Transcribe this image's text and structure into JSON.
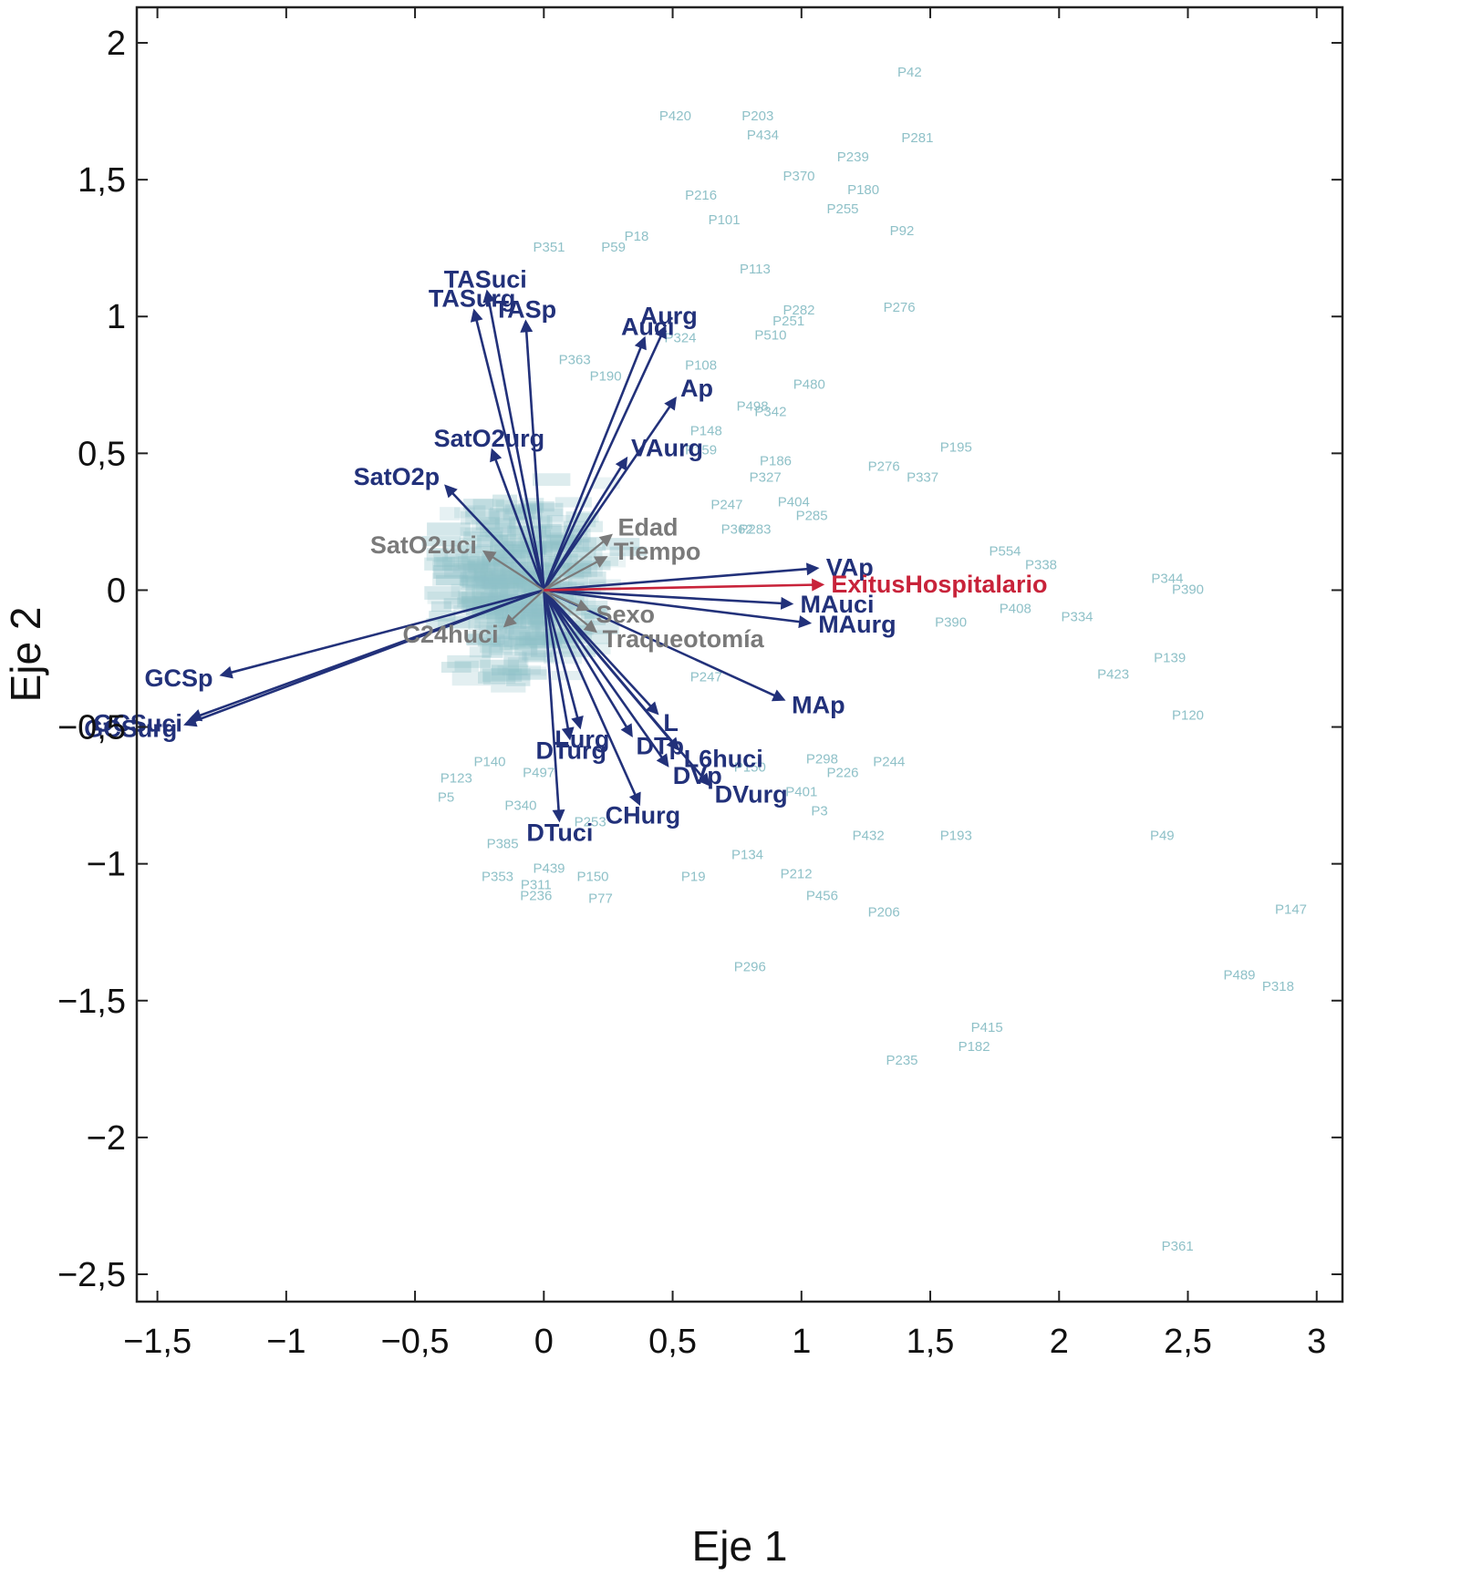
{
  "chart_data": {
    "type": "scatter",
    "subtype": "biplot",
    "xlabel": "Eje 1",
    "ylabel": "Eje 2",
    "xlim": [
      -1.58,
      3.1
    ],
    "ylim": [
      -2.6,
      2.13
    ],
    "xticks": [
      -1.5,
      -1,
      -0.5,
      0,
      0.5,
      1,
      1.5,
      2,
      2.5,
      3
    ],
    "xtick_labels": [
      "−1,5",
      "−1",
      "−0,5",
      "0",
      "0,5",
      "1",
      "1,5",
      "2",
      "2,5",
      "3"
    ],
    "yticks": [
      2,
      1.5,
      1,
      0.5,
      0,
      -0.5,
      -1,
      -1.5,
      -2,
      -2.5
    ],
    "ytick_labels": [
      "2",
      "1,5",
      "1",
      "0,5",
      "0",
      "−0,5",
      "−1",
      "−1,5",
      "−2",
      "−2,5"
    ],
    "grid": false,
    "colors": {
      "observations": "#8fc1c8",
      "variables": "#22317a",
      "supplementary": "#7a7a7a",
      "target": "#c8233a",
      "axes": "#222222"
    },
    "vectors": [
      {
        "name": "TASuci",
        "x": -0.22,
        "y": 1.09,
        "group": "variables"
      },
      {
        "name": "TASurg",
        "x": -0.27,
        "y": 1.02,
        "group": "variables"
      },
      {
        "name": "TASp",
        "x": -0.07,
        "y": 0.98,
        "group": "variables"
      },
      {
        "name": "Auci",
        "x": 0.39,
        "y": 0.92,
        "group": "variables"
      },
      {
        "name": "Aurg",
        "x": 0.47,
        "y": 0.96,
        "group": "variables"
      },
      {
        "name": "Ap",
        "x": 0.51,
        "y": 0.7,
        "group": "variables"
      },
      {
        "name": "SatO2urg",
        "x": -0.2,
        "y": 0.51,
        "group": "variables"
      },
      {
        "name": "SatO2p",
        "x": -0.38,
        "y": 0.38,
        "group": "variables"
      },
      {
        "name": "VAurg",
        "x": 0.32,
        "y": 0.48,
        "group": "variables"
      },
      {
        "name": "VAp",
        "x": 1.06,
        "y": 0.08,
        "group": "variables"
      },
      {
        "name": "MAuci",
        "x": 0.96,
        "y": -0.05,
        "group": "variables"
      },
      {
        "name": "MAurg",
        "x": 1.03,
        "y": -0.12,
        "group": "variables"
      },
      {
        "name": "MAp",
        "x": 0.93,
        "y": -0.4,
        "group": "variables"
      },
      {
        "name": "GCSp",
        "x": -1.25,
        "y": -0.31,
        "group": "variables"
      },
      {
        "name": "GCSuci",
        "x": -1.37,
        "y": -0.47,
        "group": "variables"
      },
      {
        "name": "GCSurg",
        "x": -1.39,
        "y": -0.49,
        "group": "variables"
      },
      {
        "name": "Lurg",
        "x": 0.14,
        "y": -0.5,
        "group": "variables"
      },
      {
        "name": "L",
        "x": 0.44,
        "y": -0.45,
        "group": "variables"
      },
      {
        "name": "DTurg",
        "x": 0.1,
        "y": -0.54,
        "group": "variables"
      },
      {
        "name": "DTp",
        "x": 0.34,
        "y": -0.53,
        "group": "variables"
      },
      {
        "name": "L6huci",
        "x": 0.52,
        "y": -0.58,
        "group": "variables"
      },
      {
        "name": "DVp",
        "x": 0.48,
        "y": -0.64,
        "group": "variables"
      },
      {
        "name": "DVurg",
        "x": 0.64,
        "y": -0.71,
        "group": "variables"
      },
      {
        "name": "DTuci",
        "x": 0.06,
        "y": -0.84,
        "group": "variables"
      },
      {
        "name": "CHurg",
        "x": 0.37,
        "y": -0.78,
        "group": "variables"
      },
      {
        "name": "Edad",
        "x": 0.26,
        "y": 0.2,
        "group": "supplementary"
      },
      {
        "name": "Tiempo",
        "x": 0.24,
        "y": 0.12,
        "group": "supplementary"
      },
      {
        "name": "SatO2uci",
        "x": -0.23,
        "y": 0.14,
        "group": "supplementary"
      },
      {
        "name": "Sexo",
        "x": 0.17,
        "y": -0.07,
        "group": "supplementary"
      },
      {
        "name": "C24huci",
        "x": -0.15,
        "y": -0.13,
        "group": "supplementary"
      },
      {
        "name": "Traqueotomía",
        "x": 0.2,
        "y": -0.15,
        "group": "supplementary"
      },
      {
        "name": "ExitusHospitalario",
        "x": 1.08,
        "y": 0.02,
        "group": "target"
      }
    ],
    "observations": [
      {
        "label": "P42",
        "x": 1.42,
        "y": 1.89
      },
      {
        "label": "P420",
        "x": 0.51,
        "y": 1.73
      },
      {
        "label": "P203",
        "x": 0.83,
        "y": 1.73
      },
      {
        "label": "P434",
        "x": 0.85,
        "y": 1.66
      },
      {
        "label": "P281",
        "x": 1.45,
        "y": 1.65
      },
      {
        "label": "P239",
        "x": 1.2,
        "y": 1.58
      },
      {
        "label": "P370",
        "x": 0.99,
        "y": 1.51
      },
      {
        "label": "P180",
        "x": 1.24,
        "y": 1.46
      },
      {
        "label": "P216",
        "x": 0.61,
        "y": 1.44
      },
      {
        "label": "P255",
        "x": 1.16,
        "y": 1.39
      },
      {
        "label": "P101",
        "x": 0.7,
        "y": 1.35
      },
      {
        "label": "P92",
        "x": 1.39,
        "y": 1.31
      },
      {
        "label": "P18",
        "x": 0.36,
        "y": 1.29
      },
      {
        "label": "P351",
        "x": 0.02,
        "y": 1.25
      },
      {
        "label": "P59",
        "x": 0.27,
        "y": 1.25
      },
      {
        "label": "P113",
        "x": 0.82,
        "y": 1.17
      },
      {
        "label": "P282",
        "x": 0.99,
        "y": 1.02
      },
      {
        "label": "P276",
        "x": 1.38,
        "y": 1.03
      },
      {
        "label": "P251",
        "x": 0.95,
        "y": 0.98
      },
      {
        "label": "P510",
        "x": 0.88,
        "y": 0.93
      },
      {
        "label": "P324",
        "x": 0.53,
        "y": 0.92
      },
      {
        "label": "P363",
        "x": 0.12,
        "y": 0.84
      },
      {
        "label": "P108",
        "x": 0.61,
        "y": 0.82
      },
      {
        "label": "P190",
        "x": 0.24,
        "y": 0.78
      },
      {
        "label": "P480",
        "x": 1.03,
        "y": 0.75
      },
      {
        "label": "P498",
        "x": 0.81,
        "y": 0.67
      },
      {
        "label": "P342",
        "x": 0.88,
        "y": 0.65
      },
      {
        "label": "P148",
        "x": 0.63,
        "y": 0.58
      },
      {
        "label": "P195",
        "x": 1.6,
        "y": 0.52
      },
      {
        "label": "P159",
        "x": 0.61,
        "y": 0.51
      },
      {
        "label": "P186",
        "x": 0.9,
        "y": 0.47
      },
      {
        "label": "P276",
        "x": 1.32,
        "y": 0.45
      },
      {
        "label": "P327",
        "x": 0.86,
        "y": 0.41
      },
      {
        "label": "P337",
        "x": 1.47,
        "y": 0.41
      },
      {
        "label": "P247",
        "x": 0.71,
        "y": 0.31
      },
      {
        "label": "P404",
        "x": 0.97,
        "y": 0.32
      },
      {
        "label": "P285",
        "x": 1.04,
        "y": 0.27
      },
      {
        "label": "P362",
        "x": 0.75,
        "y": 0.22
      },
      {
        "label": "P283",
        "x": 0.82,
        "y": 0.22
      },
      {
        "label": "P554",
        "x": 1.79,
        "y": 0.14
      },
      {
        "label": "P338",
        "x": 1.93,
        "y": 0.09
      },
      {
        "label": "P344",
        "x": 2.42,
        "y": 0.04
      },
      {
        "label": "P390",
        "x": 2.5,
        "y": 0.0
      },
      {
        "label": "P408",
        "x": 1.83,
        "y": -0.07
      },
      {
        "label": "P390",
        "x": 1.58,
        "y": -0.12
      },
      {
        "label": "P334",
        "x": 2.07,
        "y": -0.1
      },
      {
        "label": "P423",
        "x": 2.21,
        "y": -0.31
      },
      {
        "label": "P139",
        "x": 2.43,
        "y": -0.25
      },
      {
        "label": "P120",
        "x": 2.5,
        "y": -0.46
      },
      {
        "label": "P247",
        "x": 0.63,
        "y": -0.32
      },
      {
        "label": "P298",
        "x": 1.08,
        "y": -0.62
      },
      {
        "label": "P244",
        "x": 1.34,
        "y": -0.63
      },
      {
        "label": "P226",
        "x": 1.16,
        "y": -0.67
      },
      {
        "label": "P150",
        "x": 0.8,
        "y": -0.65
      },
      {
        "label": "P401",
        "x": 1.0,
        "y": -0.74
      },
      {
        "label": "P3",
        "x": 1.07,
        "y": -0.81
      },
      {
        "label": "P432",
        "x": 1.26,
        "y": -0.9
      },
      {
        "label": "P193",
        "x": 1.6,
        "y": -0.9
      },
      {
        "label": "P49",
        "x": 2.4,
        "y": -0.9
      },
      {
        "label": "P134",
        "x": 0.79,
        "y": -0.97
      },
      {
        "label": "P19",
        "x": 0.58,
        "y": -1.05
      },
      {
        "label": "P212",
        "x": 0.98,
        "y": -1.04
      },
      {
        "label": "P456",
        "x": 1.08,
        "y": -1.12
      },
      {
        "label": "P206",
        "x": 1.32,
        "y": -1.18
      },
      {
        "label": "P147",
        "x": 2.9,
        "y": -1.17
      },
      {
        "label": "P296",
        "x": 0.8,
        "y": -1.38
      },
      {
        "label": "P489",
        "x": 2.7,
        "y": -1.41
      },
      {
        "label": "P318",
        "x": 2.85,
        "y": -1.45
      },
      {
        "label": "P415",
        "x": 1.72,
        "y": -1.6
      },
      {
        "label": "P182",
        "x": 1.67,
        "y": -1.67
      },
      {
        "label": "P235",
        "x": 1.39,
        "y": -1.72
      },
      {
        "label": "P361",
        "x": 2.46,
        "y": -2.4
      },
      {
        "label": "P150",
        "x": 0.19,
        "y": -1.05
      },
      {
        "label": "P77",
        "x": 0.22,
        "y": -1.13
      },
      {
        "label": "P439",
        "x": 0.02,
        "y": -1.02
      },
      {
        "label": "P311",
        "x": -0.03,
        "y": -1.08
      },
      {
        "label": "P236",
        "x": -0.03,
        "y": -1.12
      },
      {
        "label": "P353",
        "x": -0.18,
        "y": -1.05
      },
      {
        "label": "P385",
        "x": -0.16,
        "y": -0.93
      },
      {
        "label": "P340",
        "x": -0.09,
        "y": -0.79
      },
      {
        "label": "P140",
        "x": -0.21,
        "y": -0.63
      },
      {
        "label": "P497",
        "x": -0.02,
        "y": -0.67
      },
      {
        "label": "P5",
        "x": -0.38,
        "y": -0.76
      },
      {
        "label": "P123",
        "x": -0.34,
        "y": -0.69
      },
      {
        "label": "P253",
        "x": 0.18,
        "y": -0.85
      }
    ],
    "cluster_region": {
      "x_range": [
        -0.52,
        0.35
      ],
      "y_range": [
        -0.45,
        0.48
      ]
    }
  }
}
